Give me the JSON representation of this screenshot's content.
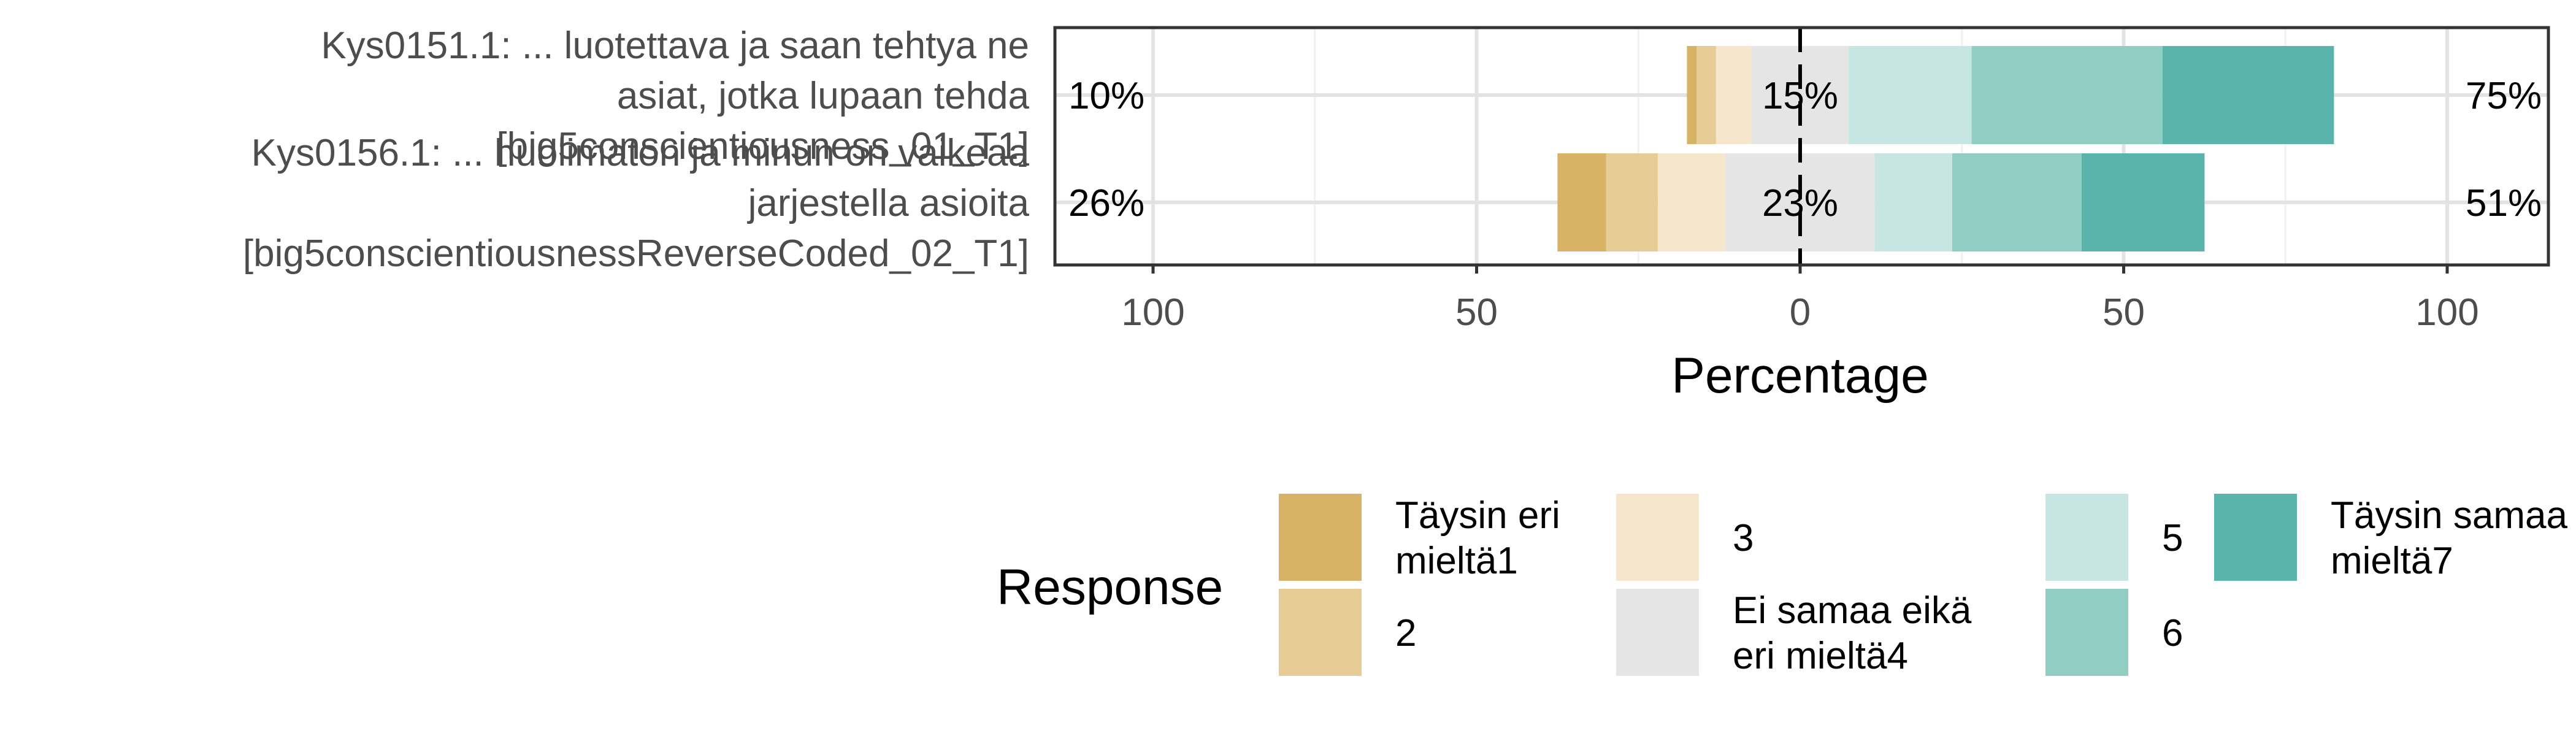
{
  "chart_data": {
    "type": "bar",
    "orientation": "horizontal",
    "stacked": "diverging",
    "xlabel": "Percentage",
    "xlim": [
      -100,
      100
    ],
    "xticks": [
      -100,
      -50,
      0,
      50,
      100
    ],
    "xtick_labels": [
      "100",
      "50",
      "0",
      "50",
      "100"
    ],
    "grid": true,
    "legend_title": "Response",
    "legend_position": "bottom",
    "categories": [
      {
        "label_lines": [
          "Kys0151.1: ... luotettava ja saan tehtya ne",
          "asiat, jotka lupaan tehda",
          "[big5conscientiousness_01_T1]"
        ],
        "low_pct": "10%",
        "neutral_pct": "15%",
        "high_pct": "75%"
      },
      {
        "label_lines": [
          "Kys0156.1: ... huolimaton ja minun on vaikeaa",
          "jarjestella asioita",
          "[big5conscientiousnessReverseCoded_02_T1]"
        ],
        "low_pct": "26%",
        "neutral_pct": "23%",
        "high_pct": "51%"
      }
    ],
    "series": [
      {
        "name_lines": [
          "Täysin eri",
          "mieltä1"
        ],
        "color": "#D8B365",
        "values": [
          1.5,
          7.5
        ]
      },
      {
        "name_lines": [
          "2"
        ],
        "color": "#E7CC95",
        "values": [
          3.0,
          8.0
        ]
      },
      {
        "name_lines": [
          "3"
        ],
        "color": "#F5E6CC",
        "values": [
          5.5,
          10.5
        ]
      },
      {
        "name_lines": [
          "Ei samaa eikä",
          "eri mieltä4"
        ],
        "color": "#E5E5E5",
        "values": [
          15,
          23
        ]
      },
      {
        "name_lines": [
          "5"
        ],
        "color": "#C7E6E3",
        "values": [
          19,
          12
        ]
      },
      {
        "name_lines": [
          "6"
        ],
        "color": "#90CDC3",
        "values": [
          29.5,
          20
        ]
      },
      {
        "name_lines": [
          "Täysin samaa",
          "mieltä7"
        ],
        "color": "#5AB4AC",
        "values": [
          26.5,
          19
        ]
      }
    ]
  }
}
